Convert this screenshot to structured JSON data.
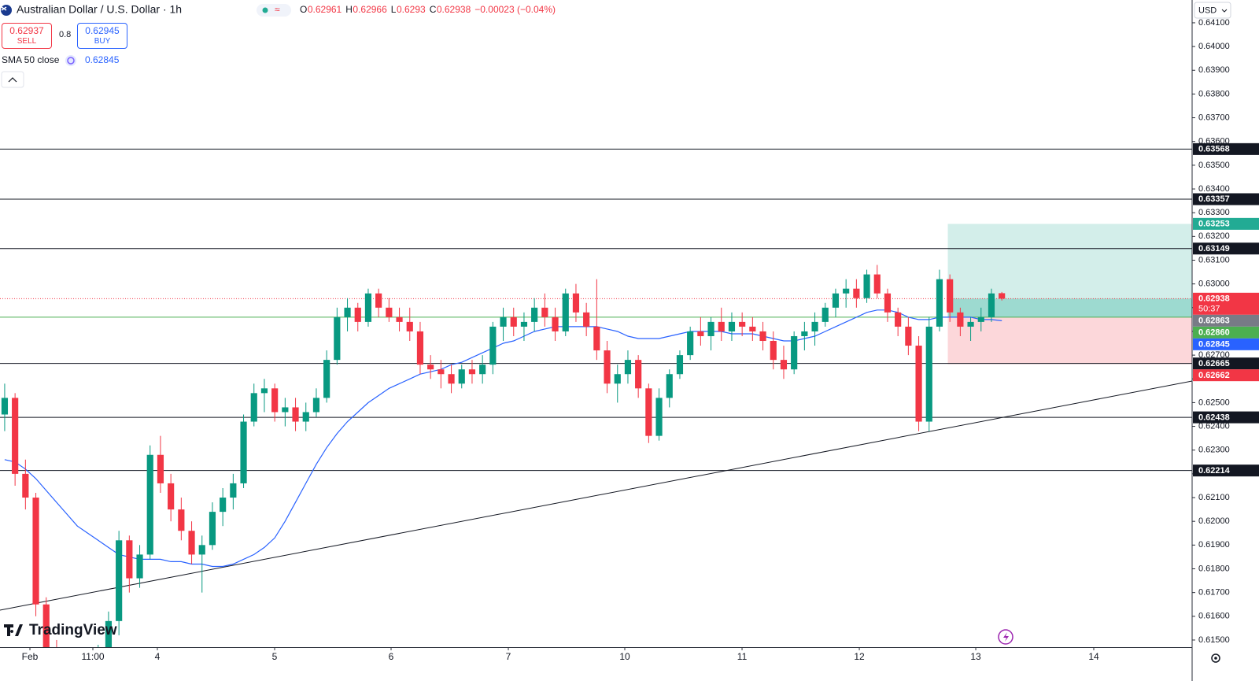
{
  "header": {
    "title": "Australian Dollar / U.S. Dollar · 1h",
    "ohlc_keys": [
      "O",
      "H",
      "L",
      "C"
    ],
    "change": "−0.00023 (−0.04%)",
    "sell_price": "0.62937",
    "sell_label": "SELL",
    "spread": "0.8",
    "buy_price": "0.62945",
    "buy_label": "BUY",
    "indicator": "SMA 50 close",
    "currency": "USD",
    "brand": "TradingView"
  },
  "chart_data": {
    "type": "candlestick",
    "title": "Australian Dollar / U.S. Dollar · 1h",
    "up_color": "#089981",
    "down_color": "#f23645",
    "grid": false,
    "ylim": [
      0.6147,
      0.64196
    ],
    "yticks": [
      {
        "value": 0.615,
        "label": "0.61500"
      },
      {
        "value": 0.616,
        "label": "0.61600"
      },
      {
        "value": 0.617,
        "label": "0.61700"
      },
      {
        "value": 0.618,
        "label": "0.61800"
      },
      {
        "value": 0.619,
        "label": "0.61900"
      },
      {
        "value": 0.62,
        "label": "0.62000"
      },
      {
        "value": 0.621,
        "label": "0.62100"
      },
      {
        "value": 0.622,
        "label": "0.62200"
      },
      {
        "value": 0.623,
        "label": "0.62300"
      },
      {
        "value": 0.624,
        "label": "0.62400"
      },
      {
        "value": 0.625,
        "label": "0.62500"
      },
      {
        "value": 0.626,
        "label": "0.62600"
      },
      {
        "value": 0.627,
        "label": "0.62700"
      },
      {
        "value": 0.628,
        "label": "0.62800"
      },
      {
        "value": 0.629,
        "label": "0.62900"
      },
      {
        "value": 0.63,
        "label": "0.63000"
      },
      {
        "value": 0.631,
        "label": "0.63100"
      },
      {
        "value": 0.632,
        "label": "0.63200"
      },
      {
        "value": 0.633,
        "label": "0.63300"
      },
      {
        "value": 0.634,
        "label": "0.63400"
      },
      {
        "value": 0.635,
        "label": "0.63500"
      },
      {
        "value": 0.636,
        "label": "0.63600"
      },
      {
        "value": 0.637,
        "label": "0.63700"
      },
      {
        "value": 0.638,
        "label": "0.63800"
      },
      {
        "value": 0.639,
        "label": "0.63900"
      },
      {
        "value": 0.64,
        "label": "0.64000"
      },
      {
        "value": 0.641,
        "label": "0.64100"
      }
    ],
    "xlim": [
      -0.45,
      114.32
    ],
    "xticks": [
      {
        "value": 2.43,
        "label": "Feb"
      },
      {
        "value": 8.49,
        "label": "11:00"
      },
      {
        "value": 14.7,
        "label": "4"
      },
      {
        "value": 25.99,
        "label": "5"
      },
      {
        "value": 37.2,
        "label": "6"
      },
      {
        "value": 48.49,
        "label": "7"
      },
      {
        "value": 59.7,
        "label": "10"
      },
      {
        "value": 70.99,
        "label": "11"
      },
      {
        "value": 82.28,
        "label": "12"
      },
      {
        "value": 93.49,
        "label": "13"
      },
      {
        "value": 104.85,
        "label": "14"
      }
    ],
    "candles": [
      [
        0.6245,
        0.6258,
        0.6238,
        0.6252
      ],
      [
        0.6252,
        0.6254,
        0.6215,
        0.622
      ],
      [
        0.622,
        0.6226,
        0.6205,
        0.621
      ],
      [
        0.621,
        0.6212,
        0.616,
        0.6165
      ],
      [
        0.6165,
        0.6168,
        0.614,
        0.6145
      ],
      [
        0.6145,
        0.615,
        0.613,
        0.6135
      ],
      [
        0.6135,
        0.6142,
        0.6125,
        0.6138
      ],
      [
        0.6138,
        0.6145,
        0.6128,
        0.6132
      ],
      [
        0.6132,
        0.614,
        0.612,
        0.6136
      ],
      [
        0.6136,
        0.6148,
        0.613,
        0.6144
      ],
      [
        0.6144,
        0.6162,
        0.614,
        0.6158
      ],
      [
        0.6158,
        0.6196,
        0.6152,
        0.6192
      ],
      [
        0.6192,
        0.6194,
        0.617,
        0.6176
      ],
      [
        0.6176,
        0.619,
        0.6172,
        0.6186
      ],
      [
        0.6186,
        0.6232,
        0.6184,
        0.6228
      ],
      [
        0.6228,
        0.6236,
        0.6212,
        0.6216
      ],
      [
        0.6216,
        0.622,
        0.62,
        0.6205
      ],
      [
        0.6205,
        0.621,
        0.6192,
        0.6196
      ],
      [
        0.6196,
        0.62,
        0.6182,
        0.6186
      ],
      [
        0.6186,
        0.6194,
        0.617,
        0.619
      ],
      [
        0.619,
        0.6208,
        0.6188,
        0.6204
      ],
      [
        0.6204,
        0.6214,
        0.6198,
        0.621
      ],
      [
        0.621,
        0.622,
        0.6205,
        0.6216
      ],
      [
        0.6216,
        0.6245,
        0.6214,
        0.6242
      ],
      [
        0.6242,
        0.6258,
        0.624,
        0.6254
      ],
      [
        0.6254,
        0.626,
        0.6246,
        0.6256
      ],
      [
        0.6256,
        0.6258,
        0.6242,
        0.6246
      ],
      [
        0.6246,
        0.6252,
        0.624,
        0.6248
      ],
      [
        0.6248,
        0.6252,
        0.6238,
        0.6242
      ],
      [
        0.6242,
        0.625,
        0.6238,
        0.6246
      ],
      [
        0.6246,
        0.6256,
        0.6244,
        0.6252
      ],
      [
        0.6252,
        0.6272,
        0.625,
        0.6268
      ],
      [
        0.6268,
        0.629,
        0.6266,
        0.6286
      ],
      [
        0.6286,
        0.6294,
        0.628,
        0.629
      ],
      [
        0.629,
        0.6292,
        0.628,
        0.6284
      ],
      [
        0.6284,
        0.6298,
        0.6282,
        0.6296
      ],
      [
        0.6296,
        0.6298,
        0.6286,
        0.629
      ],
      [
        0.629,
        0.6294,
        0.6284,
        0.6286
      ],
      [
        0.6286,
        0.629,
        0.628,
        0.6284
      ],
      [
        0.6284,
        0.629,
        0.6276,
        0.628
      ],
      [
        0.628,
        0.6284,
        0.6262,
        0.6266
      ],
      [
        0.6266,
        0.627,
        0.626,
        0.6264
      ],
      [
        0.6264,
        0.6268,
        0.6256,
        0.6262
      ],
      [
        0.6262,
        0.6266,
        0.6254,
        0.6258
      ],
      [
        0.6258,
        0.6266,
        0.6256,
        0.6264
      ],
      [
        0.6264,
        0.6268,
        0.6258,
        0.6262
      ],
      [
        0.6262,
        0.627,
        0.6258,
        0.6266
      ],
      [
        0.6266,
        0.6284,
        0.6262,
        0.6282
      ],
      [
        0.6282,
        0.629,
        0.6276,
        0.6286
      ],
      [
        0.6286,
        0.629,
        0.6278,
        0.6282
      ],
      [
        0.6282,
        0.6288,
        0.6276,
        0.6284
      ],
      [
        0.6284,
        0.6294,
        0.628,
        0.629
      ],
      [
        0.629,
        0.6296,
        0.6282,
        0.6286
      ],
      [
        0.6286,
        0.629,
        0.6276,
        0.628
      ],
      [
        0.628,
        0.6298,
        0.6278,
        0.6296
      ],
      [
        0.6296,
        0.63,
        0.6284,
        0.6288
      ],
      [
        0.6288,
        0.6292,
        0.6278,
        0.6282
      ],
      [
        0.6282,
        0.6302,
        0.6268,
        0.6272
      ],
      [
        0.6272,
        0.6276,
        0.6254,
        0.6258
      ],
      [
        0.6258,
        0.6266,
        0.625,
        0.6262
      ],
      [
        0.6262,
        0.6272,
        0.6258,
        0.6268
      ],
      [
        0.6268,
        0.627,
        0.6252,
        0.6256
      ],
      [
        0.6256,
        0.6258,
        0.6233,
        0.6236
      ],
      [
        0.6236,
        0.6256,
        0.6234,
        0.6252
      ],
      [
        0.6252,
        0.6264,
        0.6248,
        0.6262
      ],
      [
        0.6262,
        0.6272,
        0.626,
        0.627
      ],
      [
        0.627,
        0.6282,
        0.6268,
        0.628
      ],
      [
        0.628,
        0.6286,
        0.6274,
        0.6278
      ],
      [
        0.6278,
        0.6286,
        0.6272,
        0.6284
      ],
      [
        0.6284,
        0.629,
        0.6276,
        0.628
      ],
      [
        0.628,
        0.6288,
        0.6276,
        0.6284
      ],
      [
        0.6284,
        0.6288,
        0.6278,
        0.6282
      ],
      [
        0.6282,
        0.6286,
        0.6276,
        0.628
      ],
      [
        0.628,
        0.6284,
        0.6272,
        0.6276
      ],
      [
        0.6276,
        0.628,
        0.6264,
        0.6268
      ],
      [
        0.6268,
        0.6274,
        0.626,
        0.6264
      ],
      [
        0.6264,
        0.628,
        0.6262,
        0.6278
      ],
      [
        0.6278,
        0.6284,
        0.6272,
        0.628
      ],
      [
        0.628,
        0.6288,
        0.6274,
        0.6284
      ],
      [
        0.6284,
        0.6292,
        0.6282,
        0.629
      ],
      [
        0.629,
        0.6298,
        0.6286,
        0.6296
      ],
      [
        0.6296,
        0.6302,
        0.629,
        0.6298
      ],
      [
        0.6298,
        0.6302,
        0.629,
        0.6294
      ],
      [
        0.6294,
        0.6306,
        0.6292,
        0.6304
      ],
      [
        0.6304,
        0.6308,
        0.6294,
        0.6296
      ],
      [
        0.6296,
        0.6298,
        0.6284,
        0.6288
      ],
      [
        0.6288,
        0.629,
        0.6278,
        0.6282
      ],
      [
        0.6282,
        0.6286,
        0.627,
        0.6274
      ],
      [
        0.6274,
        0.6278,
        0.6238,
        0.6242
      ],
      [
        0.6242,
        0.6286,
        0.6238,
        0.6282
      ],
      [
        0.6282,
        0.6306,
        0.628,
        0.6302
      ],
      [
        0.6302,
        0.6304,
        0.6284,
        0.6288
      ],
      [
        0.6288,
        0.629,
        0.6278,
        0.6282
      ],
      [
        0.6282,
        0.6286,
        0.6276,
        0.6284
      ],
      [
        0.6284,
        0.629,
        0.628,
        0.6286
      ],
      [
        0.6286,
        0.6298,
        0.6284,
        0.6296
      ],
      [
        0.62961,
        0.62966,
        0.6293,
        0.62938
      ]
    ],
    "sma": {
      "name": "SMA 50 close",
      "color": "#2962ff",
      "values": [
        0.6226,
        0.6225,
        0.6222,
        0.6218,
        0.6213,
        0.6208,
        0.6203,
        0.6198,
        0.6195,
        0.6192,
        0.6189,
        0.6186,
        0.6185,
        0.6184,
        0.6184,
        0.6184,
        0.6183,
        0.6183,
        0.6182,
        0.6182,
        0.6181,
        0.6181,
        0.6182,
        0.6184,
        0.6186,
        0.6189,
        0.6193,
        0.62,
        0.6208,
        0.6216,
        0.6224,
        0.6231,
        0.6237,
        0.6242,
        0.6246,
        0.625,
        0.6253,
        0.6256,
        0.6258,
        0.626,
        0.6262,
        0.6263,
        0.6264,
        0.6266,
        0.6267,
        0.6269,
        0.6271,
        0.6273,
        0.6275,
        0.6276,
        0.6278,
        0.628,
        0.6281,
        0.6282,
        0.6282,
        0.6282,
        0.6282,
        0.6282,
        0.6281,
        0.628,
        0.6278,
        0.6277,
        0.6277,
        0.6277,
        0.6278,
        0.6279,
        0.628,
        0.628,
        0.628,
        0.628,
        0.6279,
        0.6279,
        0.6279,
        0.6278,
        0.6277,
        0.6276,
        0.6276,
        0.6277,
        0.6278,
        0.628,
        0.6282,
        0.6284,
        0.6286,
        0.6288,
        0.6289,
        0.6289,
        0.6288,
        0.6286,
        0.6285,
        0.6285,
        0.6286,
        0.6286,
        0.6286,
        0.6286,
        0.6285,
        0.6285,
        0.62845
      ]
    },
    "hlines": [
      {
        "value": 0.63568,
        "color": "#131722"
      },
      {
        "value": 0.63357,
        "color": "#131722"
      },
      {
        "value": 0.63149,
        "color": "#131722"
      },
      {
        "value": 0.62665,
        "color": "#131722"
      },
      {
        "value": 0.62438,
        "color": "#131722"
      },
      {
        "value": 0.62214,
        "color": "#131722"
      }
    ],
    "trendline": {
      "x": [
        -0.45,
        114.32
      ],
      "y": [
        0.61626,
        0.62591
      ],
      "color": "#131722"
    },
    "position": {
      "start": 90.8,
      "entry": {
        "value": 0.6286,
        "label": "0.62860"
      },
      "target": 0.63253,
      "stop": 0.62662,
      "entry_color": "#4caf50",
      "target_color": "#22ab94",
      "stop_color": "#f23645"
    },
    "countdown": "50:37",
    "axis_badges": [
      {
        "value": 0.62863,
        "color": "#787b86"
      }
    ]
  }
}
